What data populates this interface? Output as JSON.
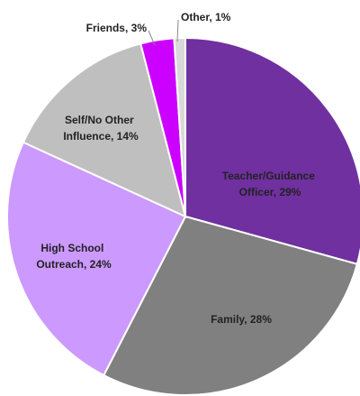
{
  "chart_data": {
    "type": "pie",
    "values": [
      29,
      28,
      24,
      14,
      3,
      1
    ],
    "value_labels": [
      "Teacher/Guidance Officer, 29%",
      "Family, 28%",
      "High School Outreach, 24%",
      "Self/No Other Influence, 14%",
      "Friends, 3%",
      "Other, 1%"
    ],
    "colors": [
      "#7030a0",
      "#808080",
      "#cc99ff",
      "#bfbfbf",
      "#cc00ff",
      "#d9d9d9"
    ]
  }
}
